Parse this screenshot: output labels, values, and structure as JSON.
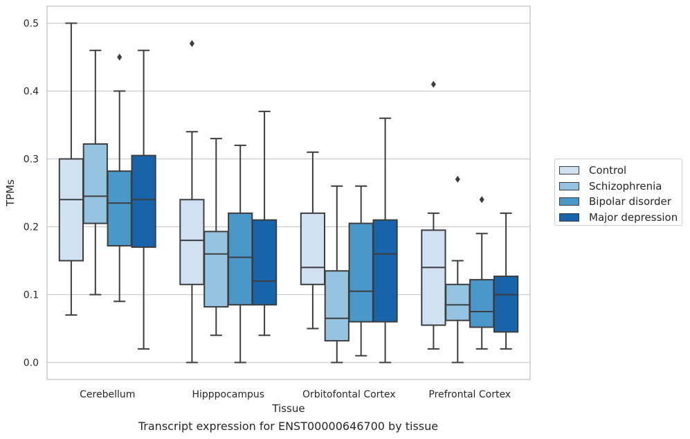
{
  "chart_data": {
    "type": "box",
    "caption": "Transcript expression for ENST00000646700 by tissue",
    "xlabel": "Tissue",
    "ylabel": "TPMs",
    "ylim": [
      -0.025,
      0.525
    ],
    "yticks": [
      "0.0",
      "0.1",
      "0.2",
      "0.3",
      "0.4",
      "0.5"
    ],
    "categories": [
      "Cerebellum",
      "Hipppocampus",
      "Orbitofontal Cortex",
      "Prefrontal Cortex"
    ],
    "grid": true,
    "legend_position": "right",
    "series": [
      {
        "name": "Control",
        "color": "#d0e1f2",
        "boxes": [
          {
            "whislo": 0.07,
            "q1": 0.15,
            "med": 0.24,
            "q3": 0.3,
            "whishi": 0.5,
            "fliers": []
          },
          {
            "whislo": 0.0,
            "q1": 0.115,
            "med": 0.18,
            "q3": 0.24,
            "whishi": 0.34,
            "fliers": [
              0.47
            ]
          },
          {
            "whislo": 0.05,
            "q1": 0.115,
            "med": 0.14,
            "q3": 0.22,
            "whishi": 0.31,
            "fliers": []
          },
          {
            "whislo": 0.02,
            "q1": 0.055,
            "med": 0.14,
            "q3": 0.195,
            "whishi": 0.22,
            "fliers": [
              0.41
            ]
          }
        ]
      },
      {
        "name": "Schizophrenia",
        "color": "#94c4df",
        "boxes": [
          {
            "whislo": 0.1,
            "q1": 0.205,
            "med": 0.245,
            "q3": 0.322,
            "whishi": 0.46,
            "fliers": []
          },
          {
            "whislo": 0.04,
            "q1": 0.082,
            "med": 0.16,
            "q3": 0.193,
            "whishi": 0.33,
            "fliers": []
          },
          {
            "whislo": 0.0,
            "q1": 0.032,
            "med": 0.065,
            "q3": 0.135,
            "whishi": 0.26,
            "fliers": []
          },
          {
            "whislo": 0.0,
            "q1": 0.062,
            "med": 0.085,
            "q3": 0.115,
            "whishi": 0.15,
            "fliers": [
              0.27
            ]
          }
        ]
      },
      {
        "name": "Bipolar disorder",
        "color": "#4a98c9",
        "boxes": [
          {
            "whislo": 0.09,
            "q1": 0.172,
            "med": 0.235,
            "q3": 0.282,
            "whishi": 0.4,
            "fliers": [
              0.45
            ]
          },
          {
            "whislo": 0.0,
            "q1": 0.085,
            "med": 0.155,
            "q3": 0.22,
            "whishi": 0.32,
            "fliers": []
          },
          {
            "whislo": 0.01,
            "q1": 0.06,
            "med": 0.105,
            "q3": 0.205,
            "whishi": 0.26,
            "fliers": []
          },
          {
            "whislo": 0.02,
            "q1": 0.052,
            "med": 0.075,
            "q3": 0.122,
            "whishi": 0.19,
            "fliers": [
              0.24
            ]
          }
        ]
      },
      {
        "name": "Major depression",
        "color": "#1764ab",
        "boxes": [
          {
            "whislo": 0.02,
            "q1": 0.17,
            "med": 0.24,
            "q3": 0.305,
            "whishi": 0.46,
            "fliers": []
          },
          {
            "whislo": 0.04,
            "q1": 0.085,
            "med": 0.12,
            "q3": 0.21,
            "whishi": 0.37,
            "fliers": []
          },
          {
            "whislo": 0.0,
            "q1": 0.06,
            "med": 0.16,
            "q3": 0.21,
            "whishi": 0.36,
            "fliers": []
          },
          {
            "whislo": 0.02,
            "q1": 0.045,
            "med": 0.1,
            "q3": 0.127,
            "whishi": 0.22,
            "fliers": []
          }
        ]
      }
    ]
  }
}
